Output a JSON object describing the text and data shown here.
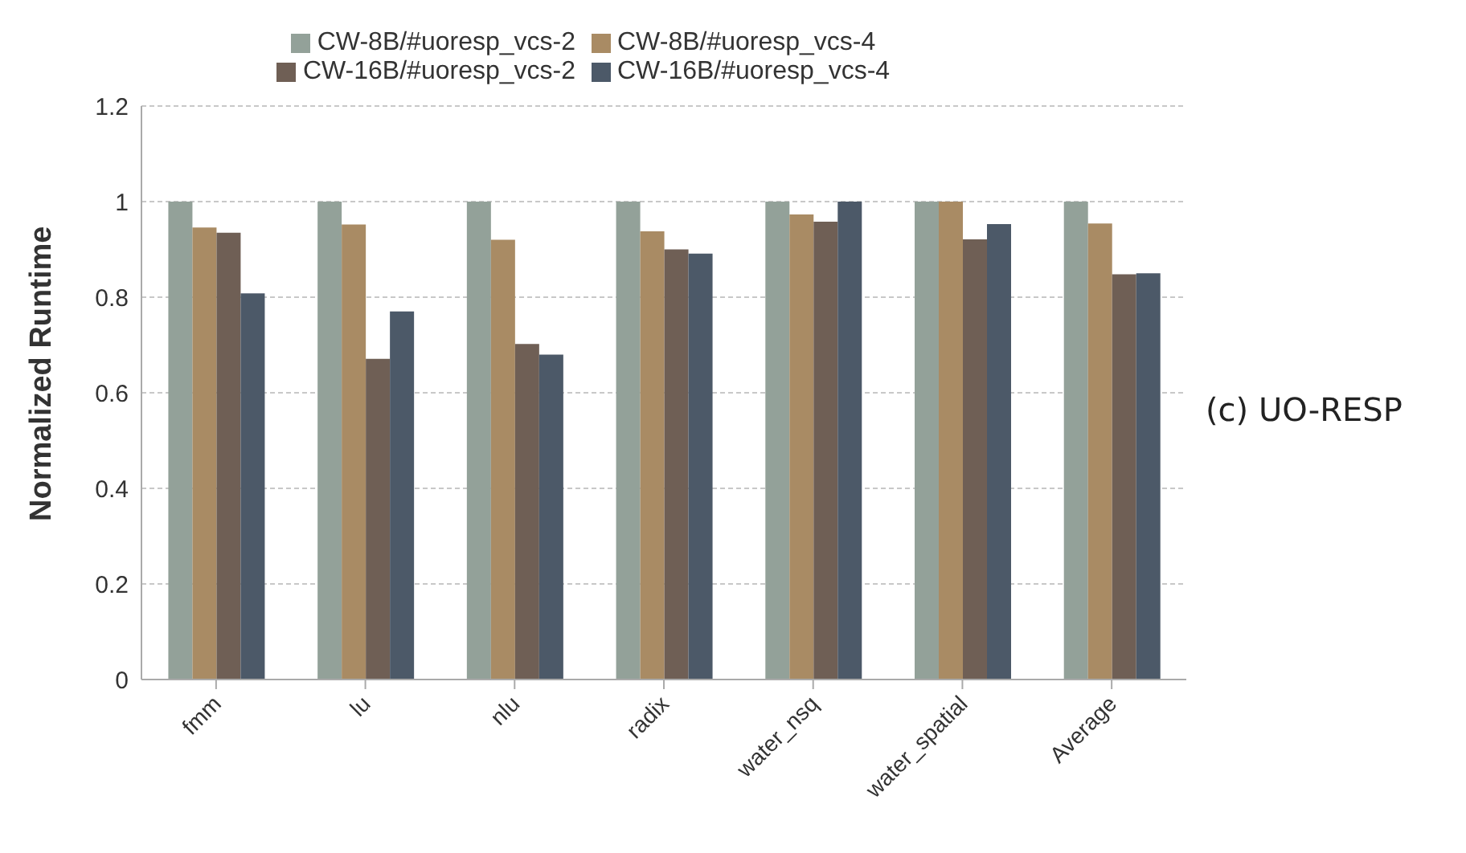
{
  "chart_data": {
    "type": "bar",
    "ylabel": "Normalized Runtime",
    "categories": [
      "fmm",
      "lu",
      "nlu",
      "radix",
      "water_nsq",
      "water_spatial",
      "Average"
    ],
    "series": [
      {
        "name": "CW-8B/#uoresp_vcs-2",
        "color": "#93a199",
        "values": [
          1,
          1,
          1,
          1,
          1,
          1,
          1
        ]
      },
      {
        "name": "CW-8B/#uoresp_vcs-4",
        "color": "#a98b64",
        "values": [
          0.946,
          0.952,
          0.92,
          0.938,
          0.973,
          1.0,
          0.954
        ]
      },
      {
        "name": "CW-16B/#uoresp_vcs-2",
        "color": "#6f5f55",
        "values": [
          0.935,
          0.671,
          0.702,
          0.9,
          0.958,
          0.921,
          0.848
        ]
      },
      {
        "name": "CW-16B/#uoresp_vcs-4",
        "color": "#4c5968",
        "values": [
          0.808,
          0.77,
          0.68,
          0.891,
          1.0,
          0.953,
          0.85
        ]
      }
    ],
    "ylim": [
      0,
      1.2
    ],
    "yticks": [
      0,
      0.2,
      0.4,
      0.6,
      0.8,
      1,
      1.2
    ],
    "grid": "y",
    "legend": "top",
    "annotations": [
      "(c) UO-RESP"
    ]
  }
}
